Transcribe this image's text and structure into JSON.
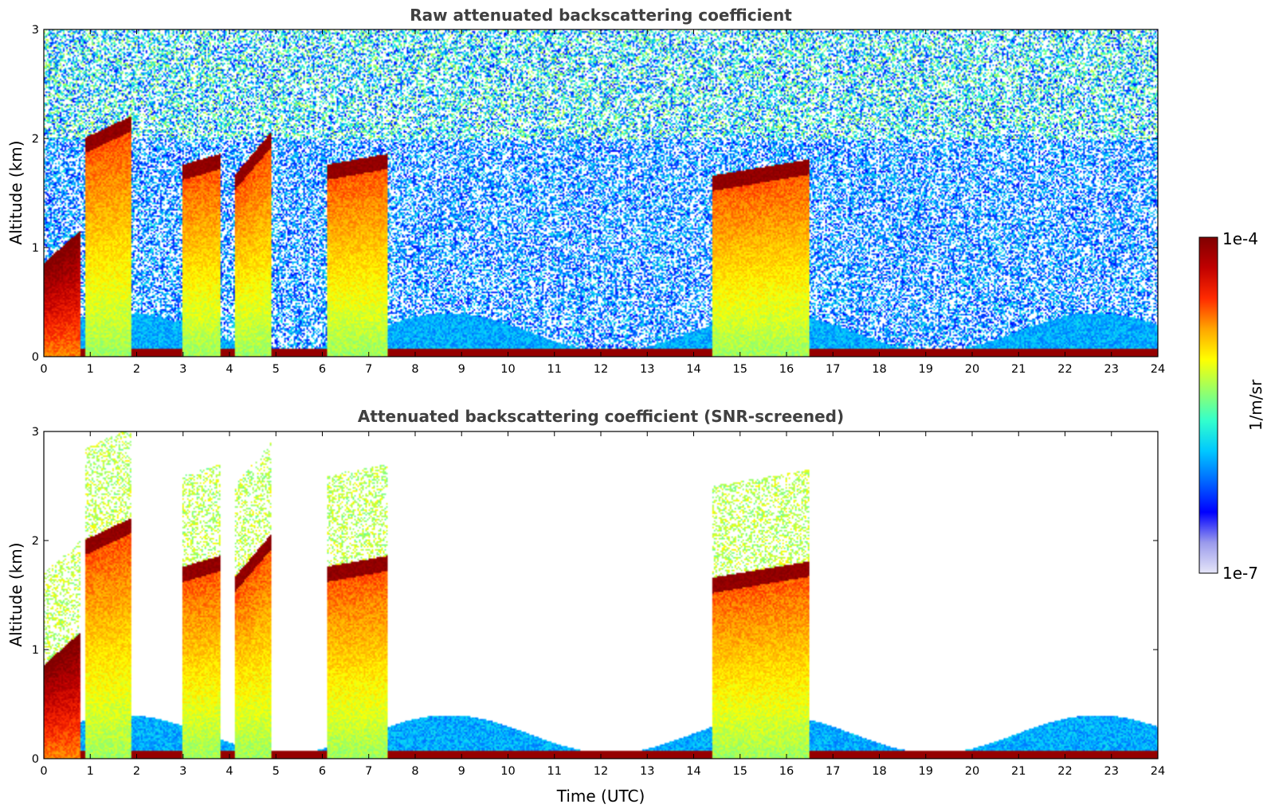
{
  "figure": {
    "colormap": "jet",
    "colorbar": {
      "label": "1/m/sr",
      "max_label": "1e-4",
      "min_label": "1e-7",
      "scale": "log",
      "range": [
        1e-07,
        0.0001
      ],
      "stops": [
        "#e6e6f8",
        "#9a9aec",
        "#0000ff",
        "#0066ff",
        "#00c8ff",
        "#33ffcc",
        "#99ff66",
        "#ffff00",
        "#ffa500",
        "#ff2a00",
        "#c00000",
        "#800000"
      ]
    }
  },
  "chart_data": [
    {
      "type": "heatmap",
      "title": "Raw attenuated backscattering coefficient",
      "xlabel": "",
      "ylabel": "Altitude (km)",
      "xlim": [
        0,
        24
      ],
      "ylim": [
        0,
        3
      ],
      "xticks": [
        "0",
        "1",
        "2",
        "3",
        "4",
        "5",
        "6",
        "7",
        "8",
        "9",
        "10",
        "11",
        "12",
        "13",
        "14",
        "15",
        "16",
        "17",
        "18",
        "19",
        "20",
        "21",
        "22",
        "23",
        "24"
      ],
      "yticks": [
        "0",
        "1",
        "2",
        "3"
      ],
      "screened": false,
      "layers": [
        {
          "feature": "aerosol/boundary layer",
          "x": [
            0,
            0.8
          ],
          "top_km": [
            0.8,
            1.1
          ]
        },
        {
          "feature": "cloud base",
          "x": [
            0.9,
            1.9
          ],
          "top_km": [
            1.95,
            2.15
          ]
        },
        {
          "feature": "cloud base",
          "x": [
            3.0,
            3.8
          ],
          "top_km": [
            1.7,
            1.8
          ]
        },
        {
          "feature": "cloud base",
          "x": [
            4.1,
            4.9
          ],
          "top_km": [
            1.6,
            2.0
          ]
        },
        {
          "feature": "cloud base",
          "x": [
            6.1,
            7.4
          ],
          "top_km": [
            1.7,
            1.8
          ]
        },
        {
          "feature": "cloud base",
          "x": [
            14.4,
            16.5
          ],
          "top_km": [
            1.6,
            1.75
          ]
        },
        {
          "feature": "surface layer",
          "x": [
            0,
            24
          ],
          "top_km": [
            0.05,
            0.4
          ]
        }
      ]
    },
    {
      "type": "heatmap",
      "title": "Attenuated backscattering coefficient (SNR-screened)",
      "xlabel": "Time (UTC)",
      "ylabel": "Altitude (km)",
      "xlim": [
        0,
        24
      ],
      "ylim": [
        0,
        3
      ],
      "xticks": [
        "0",
        "1",
        "2",
        "3",
        "4",
        "5",
        "6",
        "7",
        "8",
        "9",
        "10",
        "11",
        "12",
        "13",
        "14",
        "15",
        "16",
        "17",
        "18",
        "19",
        "20",
        "21",
        "22",
        "23",
        "24"
      ],
      "yticks": [
        "0",
        "1",
        "2",
        "3"
      ],
      "screened": true,
      "layers": [
        {
          "feature": "aerosol/boundary layer",
          "x": [
            0,
            0.8
          ],
          "top_km": [
            0.8,
            1.1
          ]
        },
        {
          "feature": "cloud base",
          "x": [
            0.9,
            1.9
          ],
          "top_km": [
            1.95,
            2.15
          ]
        },
        {
          "feature": "cloud base",
          "x": [
            3.0,
            3.8
          ],
          "top_km": [
            1.7,
            1.8
          ]
        },
        {
          "feature": "cloud base",
          "x": [
            4.1,
            4.9
          ],
          "top_km": [
            1.6,
            2.0
          ]
        },
        {
          "feature": "cloud base",
          "x": [
            6.1,
            7.4
          ],
          "top_km": [
            1.7,
            1.8
          ]
        },
        {
          "feature": "cloud base",
          "x": [
            14.4,
            16.5
          ],
          "top_km": [
            1.6,
            1.75
          ]
        },
        {
          "feature": "surface layer",
          "x": [
            0,
            24
          ],
          "top_km": [
            0.05,
            0.4
          ]
        }
      ]
    }
  ]
}
